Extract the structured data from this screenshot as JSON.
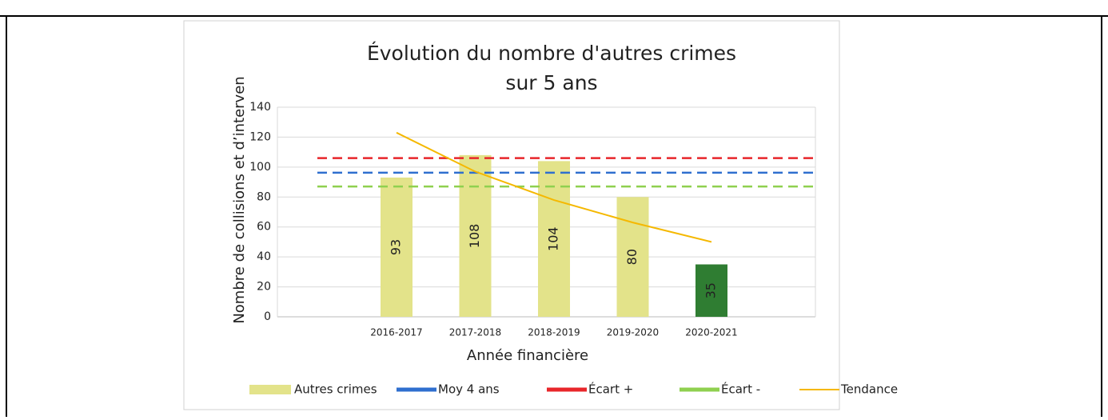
{
  "chart_data": {
    "type": "bar",
    "title": [
      "Évolution du nombre d'autres crimes",
      "sur 5 ans"
    ],
    "x_label": "Année financière",
    "y_label": "Nombre de collisions et d’interven",
    "categories": [
      "2016-2017",
      "2017-2018",
      "2018-2019",
      "2019-2020",
      "2020-2021"
    ],
    "ylim": [
      0,
      140
    ],
    "yticks": [
      0,
      20,
      40,
      60,
      80,
      100,
      120,
      140
    ],
    "grid": true,
    "legend": "bottom",
    "series": [
      {
        "name": "Autres crimes",
        "type": "bar",
        "color": "#e3e38a",
        "colors": [
          "#e3e38a",
          "#e3e38a",
          "#e3e38a",
          "#e3e38a",
          "#2f7d32"
        ],
        "values": [
          93,
          108,
          104,
          80,
          35
        ]
      },
      {
        "name": "Moy 4 ans",
        "type": "hline",
        "color": "#2f6fcf",
        "value": 96.25
      },
      {
        "name": "Écart +",
        "type": "hline",
        "color": "#e8262a",
        "value": 106
      },
      {
        "name": "Écart -",
        "type": "hline",
        "color": "#8fd04f",
        "value": 87
      },
      {
        "name": "Tendance",
        "type": "line",
        "color": "#f5b800",
        "values": [
          123,
          97,
          78,
          63,
          50
        ]
      }
    ]
  }
}
